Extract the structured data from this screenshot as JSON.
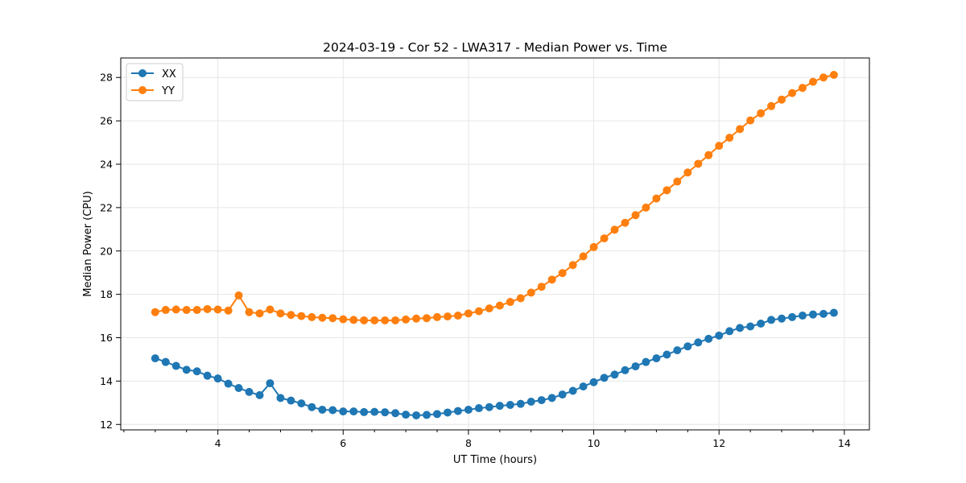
{
  "chart_data": {
    "type": "line",
    "title": "2024-03-19 - Cor 52 - LWA317 - Median Power vs. Time",
    "xlabel": "UT Time (hours)",
    "ylabel": "Median Power (CPU)",
    "xlim": [
      2.45,
      14.4
    ],
    "ylim": [
      11.75,
      28.9
    ],
    "x_ticks": [
      4,
      6,
      8,
      10,
      12,
      14
    ],
    "x_tick_labels": [
      "4",
      "6",
      "8",
      "10",
      "12",
      "14"
    ],
    "x_minor_step": 0.5,
    "y_ticks": [
      12,
      14,
      16,
      18,
      20,
      22,
      24,
      26,
      28
    ],
    "y_tick_labels": [
      "12",
      "14",
      "16",
      "18",
      "20",
      "22",
      "24",
      "26",
      "28"
    ],
    "grid": true,
    "legend_position": "top-left",
    "x": [
      3.0,
      3.167,
      3.333,
      3.5,
      3.667,
      3.833,
      4.0,
      4.167,
      4.333,
      4.5,
      4.667,
      4.833,
      5.0,
      5.167,
      5.333,
      5.5,
      5.667,
      5.833,
      6.0,
      6.167,
      6.333,
      6.5,
      6.667,
      6.833,
      7.0,
      7.167,
      7.333,
      7.5,
      7.667,
      7.833,
      8.0,
      8.167,
      8.333,
      8.5,
      8.667,
      8.833,
      9.0,
      9.167,
      9.333,
      9.5,
      9.667,
      9.833,
      10.0,
      10.167,
      10.333,
      10.5,
      10.667,
      10.833,
      11.0,
      11.167,
      11.333,
      11.5,
      11.667,
      11.833,
      12.0,
      12.167,
      12.333,
      12.5,
      12.667,
      12.833,
      13.0,
      13.167,
      13.333,
      13.5,
      13.667,
      13.833
    ],
    "series": [
      {
        "name": "XX",
        "color": "#1f77b4",
        "values": [
          15.05,
          14.88,
          14.7,
          14.52,
          14.45,
          14.25,
          14.12,
          13.88,
          13.68,
          13.5,
          13.35,
          13.9,
          13.22,
          13.1,
          12.97,
          12.8,
          12.68,
          12.66,
          12.6,
          12.6,
          12.57,
          12.58,
          12.56,
          12.52,
          12.45,
          12.42,
          12.44,
          12.48,
          12.55,
          12.62,
          12.68,
          12.75,
          12.8,
          12.86,
          12.9,
          12.95,
          13.05,
          13.12,
          13.22,
          13.38,
          13.55,
          13.75,
          13.95,
          14.15,
          14.3,
          14.5,
          14.68,
          14.88,
          15.05,
          15.22,
          15.42,
          15.6,
          15.78,
          15.95,
          16.1,
          16.3,
          16.45,
          16.52,
          16.65,
          16.82,
          16.88,
          16.95,
          17.02,
          17.07,
          17.1,
          17.15
        ]
      },
      {
        "name": "YY",
        "color": "#ff7f0e",
        "values": [
          17.18,
          17.28,
          17.3,
          17.28,
          17.28,
          17.32,
          17.3,
          17.25,
          17.95,
          17.18,
          17.12,
          17.3,
          17.12,
          17.05,
          17.0,
          16.95,
          16.92,
          16.9,
          16.85,
          16.82,
          16.8,
          16.8,
          16.8,
          16.8,
          16.84,
          16.88,
          16.9,
          16.95,
          16.98,
          17.02,
          17.12,
          17.22,
          17.35,
          17.48,
          17.65,
          17.82,
          18.08,
          18.35,
          18.68,
          18.98,
          19.35,
          19.75,
          20.18,
          20.58,
          20.98,
          21.3,
          21.65,
          22.0,
          22.42,
          22.8,
          23.2,
          23.62,
          24.02,
          24.42,
          24.85,
          25.22,
          25.62,
          26.02,
          26.35,
          26.68,
          26.98,
          27.28,
          27.52,
          27.8,
          28.0,
          28.12
        ]
      }
    ]
  }
}
